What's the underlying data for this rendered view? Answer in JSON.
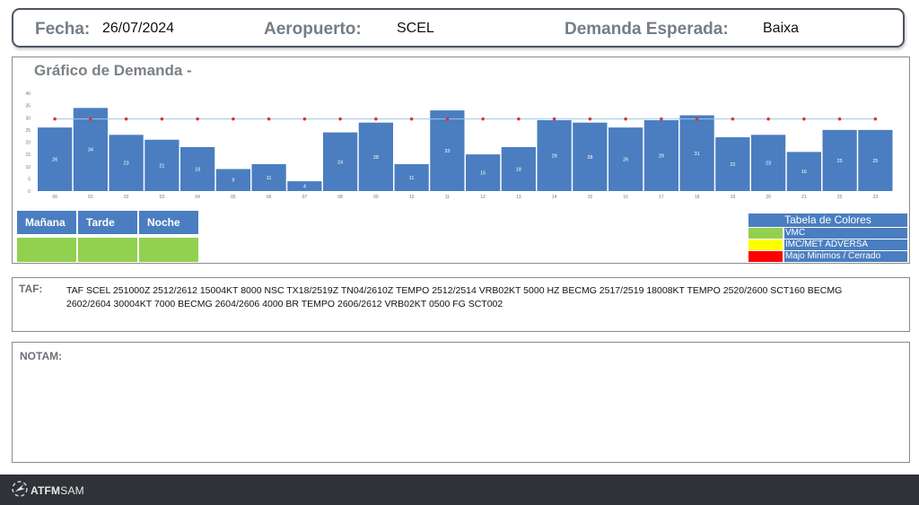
{
  "header": {
    "fecha_label": "Fecha:",
    "fecha_value": "26/07/2024",
    "aeropuerto_label": "Aeropuerto:",
    "aeropuerto_value": "SCEL",
    "demanda_label": "Demanda  Esperada:",
    "demanda_value": "Baixa"
  },
  "chart": {
    "title": "Gráfico de Demanda  -"
  },
  "chart_data": {
    "type": "bar",
    "categories": [
      "00",
      "01",
      "02",
      "03",
      "04",
      "05",
      "06",
      "07",
      "08",
      "09",
      "10",
      "11",
      "12",
      "13",
      "14",
      "15",
      "16",
      "17",
      "18",
      "19",
      "20",
      "21",
      "22",
      "23"
    ],
    "values": [
      26,
      34,
      23,
      21,
      18,
      9,
      11,
      4,
      24,
      28,
      11,
      33,
      15,
      18,
      29,
      28,
      26,
      29,
      31,
      22,
      23,
      16,
      25,
      25
    ],
    "capacity_line": 29.5,
    "ylim": [
      0,
      40
    ],
    "yticks": [
      0,
      5,
      10,
      15,
      20,
      25,
      30,
      35,
      40
    ],
    "bar_color": "#4a7ec0",
    "line_color": "#9ec8e8",
    "marker_color": "#e03030",
    "grid": false
  },
  "shifts": [
    {
      "label": "Mañana",
      "color": "#92d050"
    },
    {
      "label": "Tarde",
      "color": "#92d050"
    },
    {
      "label": "Noche",
      "color": "#92d050"
    }
  ],
  "color_table": {
    "title": "Tabela de Colores",
    "rows": [
      {
        "label": "VMC",
        "color": "#92d050"
      },
      {
        "label": "IMC/MET ADVERSA",
        "color": "#ffff00"
      },
      {
        "label": "Majo Minimos / Cerrado",
        "color": "#ff0000"
      }
    ]
  },
  "taf": {
    "label": "TAF:",
    "text": "TAF SCEL 251000Z 2512/2612 15004KT 8000 NSC TX18/2519Z TN04/2610Z TEMPO 2512/2514 VRB02KT 5000 HZ BECMG 2517/2519 18008KT TEMPO 2520/2600 SCT160 BECMG 2602/2604 30004KT 7000 BECMG 2604/2606 4000 BR TEMPO 2606/2612 VRB02KT 0500 FG SCT002"
  },
  "notam": {
    "label": "NOTAM:"
  },
  "footer": {
    "logo_bold": "ATFM",
    "logo_thin": "SAM"
  }
}
